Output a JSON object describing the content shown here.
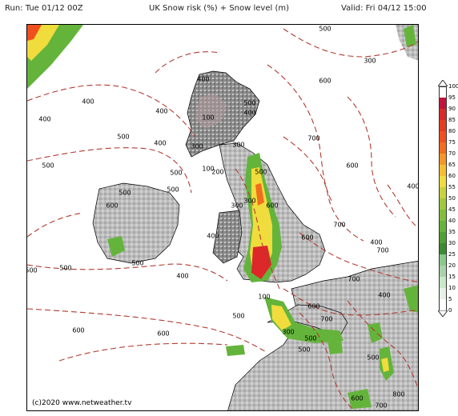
{
  "header": {
    "run": "Run: Tue 01/12 00Z",
    "title": "UK Snow risk (%) + Snow level (m)",
    "valid": "Valid: Fri 04/12 15:00"
  },
  "copyright": "(c)2020  www.netweather.tv",
  "legend": {
    "values": [
      "100",
      "95",
      "90",
      "85",
      "80",
      "75",
      "70",
      "65",
      "60",
      "55",
      "50",
      "45",
      "40",
      "35",
      "30",
      "25",
      "20",
      "15",
      "10",
      "5",
      "0"
    ],
    "colors": [
      "#ffffff",
      "#c0143c",
      "#dc2828",
      "#e63c1e",
      "#f0501e",
      "#f06e1e",
      "#f59628",
      "#f5be32",
      "#f0dc3c",
      "#c8d23c",
      "#a0c83c",
      "#82be3c",
      "#64b43c",
      "#50a032",
      "#3c8c32",
      "#8cc88c",
      "#aad2aa",
      "#c8e6c8",
      "#e6f0e6",
      "#ffffff"
    ]
  },
  "contour_labels": [
    {
      "text": "500"
    },
    {
      "text": "300"
    },
    {
      "text": "400"
    },
    {
      "text": "400"
    },
    {
      "text": "600"
    },
    {
      "text": "500"
    },
    {
      "text": "500"
    },
    {
      "text": "400"
    },
    {
      "text": "400"
    },
    {
      "text": "400"
    },
    {
      "text": "500"
    },
    {
      "text": "700"
    },
    {
      "text": "500"
    },
    {
      "text": "500"
    },
    {
      "text": "300"
    },
    {
      "text": "400"
    },
    {
      "text": "100"
    },
    {
      "text": "300"
    },
    {
      "text": "200"
    },
    {
      "text": "600"
    },
    {
      "text": "500"
    },
    {
      "text": "600"
    },
    {
      "text": "400"
    },
    {
      "text": "500"
    },
    {
      "text": "400"
    },
    {
      "text": "700"
    },
    {
      "text": "300"
    },
    {
      "text": "400"
    },
    {
      "text": "600"
    },
    {
      "text": "600"
    },
    {
      "text": "500"
    },
    {
      "text": "400"
    },
    {
      "text": "700"
    },
    {
      "text": "500"
    },
    {
      "text": "700"
    },
    {
      "text": "400"
    },
    {
      "text": "100"
    },
    {
      "text": "600"
    },
    {
      "text": "500"
    },
    {
      "text": "300"
    },
    {
      "text": "700"
    },
    {
      "text": "600"
    },
    {
      "text": "600"
    },
    {
      "text": "500"
    },
    {
      "text": "500"
    },
    {
      "text": "800"
    },
    {
      "text": "700"
    },
    {
      "text": "600"
    },
    {
      "text": "100"
    },
    {
      "text": "300"
    },
    {
      "text": "500"
    },
    {
      "text": "500"
    }
  ]
}
